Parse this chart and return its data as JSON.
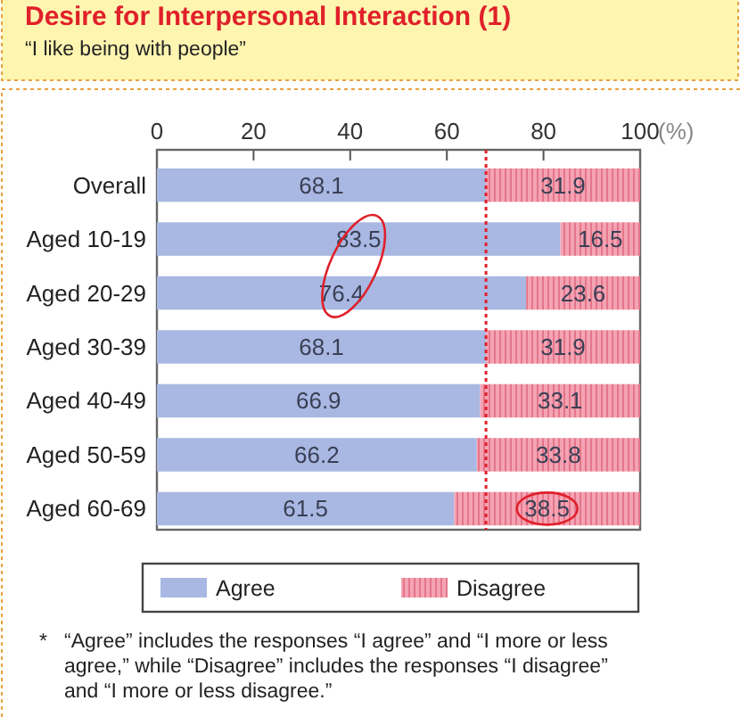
{
  "chart_data": {
    "type": "bar",
    "orientation": "horizontal",
    "stacked": true,
    "title": "Desire for Interpersonal Interaction (1)",
    "subtitle": "“I like being with people”",
    "xlabel": "(%)",
    "categories": [
      "Overall",
      "Aged 10-19",
      "Aged 20-29",
      "Aged 30-39",
      "Aged 40-49",
      "Aged 50-59",
      "Aged 60-69"
    ],
    "series": [
      {
        "name": "Agree",
        "color": "#a9b8e2",
        "values": [
          68.1,
          83.5,
          76.4,
          68.1,
          66.9,
          66.2,
          61.5
        ]
      },
      {
        "name": "Disagree",
        "color": "#f4a3b3",
        "values": [
          31.9,
          16.5,
          23.6,
          31.9,
          33.1,
          33.8,
          38.5
        ]
      }
    ],
    "xlim": [
      0,
      100
    ],
    "xticks": [
      0,
      20,
      40,
      60,
      80,
      100
    ],
    "data_labels": true,
    "legend": "bottom",
    "ref_lines": [
      {
        "axis": "x",
        "value": 68.1,
        "color": "#e0202a",
        "line_style": "dotted"
      }
    ],
    "annotations": [
      "* “Agree” includes the responses “I agree” and “I more or less agree,” while “Disagree” includes the responses “I disagree” and “I more or less disagree.”"
    ]
  }
}
